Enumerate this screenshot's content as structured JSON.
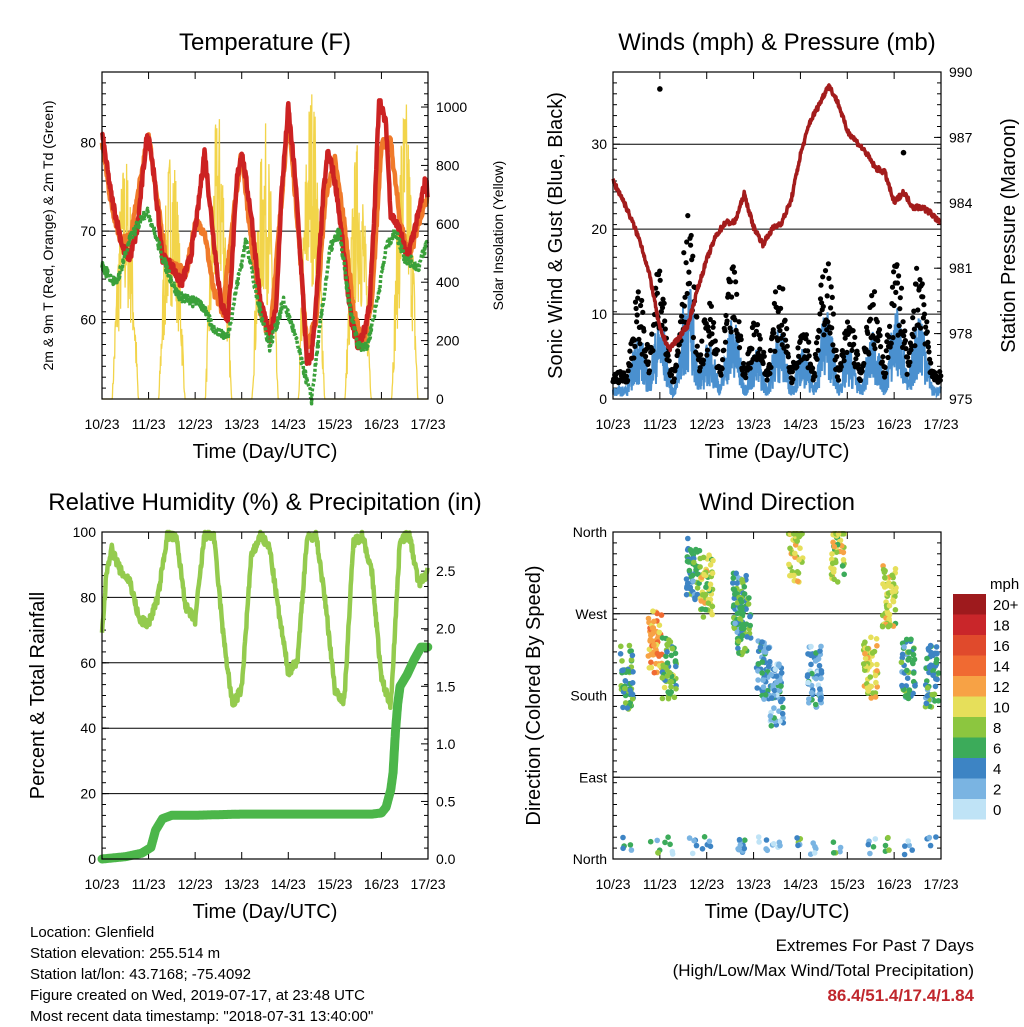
{
  "chart_data": [
    {
      "type": "line",
      "title": "Temperature (F)",
      "xlabel": "Time (Day/UTC)",
      "ylabel_left": "2m & 9m T (Red, Orange) & 2m Td (Green)",
      "ylabel_right": "Solar Insolation (Yellow)",
      "ylim_left": [
        51,
        88
      ],
      "ylim_right": [
        0,
        1120
      ],
      "yticks_left": [
        60,
        70,
        80
      ],
      "yticks_right": [
        0,
        200,
        400,
        600,
        800,
        1000
      ],
      "x_tick_labels": [
        "10/23",
        "11/23",
        "12/23",
        "13/23",
        "14/23",
        "15/23",
        "16/23",
        "17/23"
      ],
      "x_range_days": [
        10,
        17
      ],
      "grid": "horizontal",
      "series": [
        {
          "name": "2m T",
          "color": "#cc2222",
          "x": [
            10.0,
            10.2,
            10.45,
            10.6,
            10.75,
            10.95,
            11.0,
            11.1,
            11.3,
            11.5,
            11.7,
            11.9,
            12.05,
            12.2,
            12.4,
            12.55,
            12.7,
            12.8,
            12.9,
            13.0,
            13.2,
            13.4,
            13.6,
            13.75,
            13.85,
            14.0,
            14.15,
            14.3,
            14.4,
            14.5,
            14.6,
            14.75,
            14.85,
            14.95,
            15.05,
            15.2,
            15.35,
            15.5,
            15.65,
            15.75,
            15.85,
            15.95,
            16.1,
            16.2,
            16.4,
            16.55,
            16.7,
            16.8,
            16.95,
            17.0
          ],
          "y": [
            81,
            74,
            68,
            67,
            70,
            80,
            81,
            77,
            67,
            66,
            64,
            67,
            72,
            79,
            69,
            62,
            60,
            67,
            76,
            79,
            72,
            62,
            58,
            62,
            74,
            84,
            76,
            64,
            55,
            56,
            62,
            74,
            79,
            77,
            74,
            67,
            60,
            57,
            59,
            62,
            72,
            85,
            82,
            72,
            70,
            67,
            70,
            72,
            76,
            74
          ]
        },
        {
          "name": "9m T",
          "color": "#f07a2a",
          "x": [
            10.0,
            10.2,
            10.4,
            10.6,
            10.8,
            11.0,
            11.2,
            11.4,
            11.6,
            11.8,
            12.0,
            12.2,
            12.4,
            12.6,
            12.8,
            13.0,
            13.2,
            13.4,
            13.6,
            13.8,
            14.0,
            14.2,
            14.4,
            14.6,
            14.8,
            15.0,
            15.2,
            15.4,
            15.6,
            15.8,
            16.0,
            16.2,
            16.4,
            16.6,
            16.8,
            17.0
          ],
          "y": [
            80,
            73,
            69,
            69,
            75,
            81,
            73,
            66,
            66,
            65,
            71,
            70,
            63,
            61,
            71,
            79,
            69,
            61,
            58,
            70,
            83,
            71,
            57,
            60,
            74,
            78,
            71,
            61,
            57,
            62,
            80,
            80,
            71,
            67,
            71,
            74
          ]
        },
        {
          "name": "2m Td",
          "color": "#3aa03a",
          "x": [
            10.0,
            10.3,
            10.6,
            10.9,
            11.0,
            11.3,
            11.6,
            11.9,
            12.1,
            12.4,
            12.7,
            12.9,
            13.1,
            13.3,
            13.6,
            13.9,
            14.1,
            14.3,
            14.5,
            14.7,
            14.9,
            15.1,
            15.3,
            15.5,
            15.7,
            15.9,
            16.1,
            16.3,
            16.5,
            16.8,
            17.0
          ],
          "y": [
            66,
            64,
            69,
            72,
            72,
            67,
            63,
            62,
            62,
            59,
            58,
            64,
            69,
            63,
            57,
            62,
            59,
            55,
            51,
            60,
            68,
            70,
            62,
            57,
            57,
            62,
            68,
            70,
            67,
            66,
            69
          ]
        },
        {
          "name": "Solar Insolation",
          "color": "#f2d44a",
          "axis": "right",
          "days": [
            10,
            11,
            12,
            13,
            14,
            15,
            16
          ],
          "peaks": [
            850,
            900,
            1000,
            950,
            1100,
            900,
            1050
          ]
        }
      ]
    },
    {
      "type": "line",
      "title": "Winds (mph) & Pressure (mb)",
      "xlabel": "Time (Day/UTC)",
      "ylabel_left": "Sonic Wind & Gust (Blue, Black)",
      "ylabel_right": "Station Pressure (Maroon)",
      "ylim_left": [
        0,
        38.5
      ],
      "ylim_right": [
        975,
        990
      ],
      "yticks_left": [
        0,
        10,
        20,
        30
      ],
      "yticks_right": [
        975,
        978,
        981,
        984,
        987,
        990
      ],
      "x_tick_labels": [
        "10/23",
        "11/23",
        "12/23",
        "13/23",
        "14/23",
        "15/23",
        "16/23",
        "17/23"
      ],
      "x_range_days": [
        10,
        17
      ],
      "grid": "horizontal",
      "series": [
        {
          "name": "Pressure",
          "color": "#a31c1c",
          "axis": "right",
          "x": [
            10.0,
            10.2,
            10.4,
            10.6,
            10.8,
            11.0,
            11.2,
            11.4,
            11.6,
            11.8,
            12.0,
            12.2,
            12.4,
            12.6,
            12.8,
            13.0,
            13.2,
            13.4,
            13.6,
            13.8,
            14.0,
            14.2,
            14.4,
            14.6,
            14.8,
            15.0,
            15.2,
            15.4,
            15.6,
            15.8,
            16.0,
            16.2,
            16.4,
            16.6,
            16.8,
            17.0
          ],
          "y": [
            985,
            984.2,
            983.2,
            982.1,
            980.5,
            978.2,
            977.3,
            977.8,
            978.4,
            980,
            981.4,
            982.5,
            983.1,
            983.1,
            984.4,
            982.9,
            982.1,
            982.8,
            983.1,
            984.1,
            986.2,
            987.7,
            988.5,
            989.4,
            988.6,
            987.3,
            986.8,
            986.3,
            985.6,
            985.4,
            984,
            984.5,
            983.8,
            983.8,
            983.5,
            983
          ]
        },
        {
          "name": "Wind",
          "color": "#4a90cf",
          "days": [
            10.55,
            11.0,
            11.6,
            12.05,
            12.55,
            13.05,
            13.55,
            14.05,
            14.55,
            15.05,
            15.55,
            16.05,
            16.55
          ],
          "peaks": [
            8,
            10,
            14,
            7,
            10,
            6,
            9,
            6,
            11,
            6,
            8,
            11,
            11
          ]
        },
        {
          "name": "Gust",
          "color": "#000000",
          "outliers": [
            [
              11.0,
              36.5
            ],
            [
              16.2,
              29
            ]
          ]
        }
      ]
    },
    {
      "type": "line",
      "title": "Relative Humidity (%) & Precipitation (in)",
      "xlabel": "Time (Day/UTC)",
      "ylabel_left": "Percent & Total Rainfall",
      "ylim_left": [
        0,
        100
      ],
      "ylim_right": [
        0,
        2.84
      ],
      "yticks_left": [
        0,
        20,
        40,
        60,
        80,
        100
      ],
      "yticks_right": [
        "0.0",
        "0.5",
        "1.0",
        "1.5",
        "2.0",
        "2.5"
      ],
      "x_tick_labels": [
        "10/23",
        "11/23",
        "12/23",
        "13/23",
        "14/23",
        "15/23",
        "16/23",
        "17/23"
      ],
      "x_range_days": [
        10,
        17
      ],
      "grid": "horizontal",
      "series": [
        {
          "name": "RH",
          "color": "#94cb4e",
          "x": [
            10.0,
            10.1,
            10.2,
            10.4,
            10.6,
            10.8,
            11.0,
            11.2,
            11.4,
            11.6,
            11.8,
            12.0,
            12.2,
            12.4,
            12.6,
            12.8,
            13.0,
            13.2,
            13.4,
            13.6,
            13.8,
            14.0,
            14.2,
            14.4,
            14.6,
            14.8,
            15.0,
            15.2,
            15.4,
            15.6,
            15.8,
            16.0,
            16.2,
            16.4,
            16.6,
            16.8,
            17.0
          ],
          "y": [
            69,
            88,
            95,
            88,
            85,
            73,
            72,
            80,
            99,
            98,
            77,
            73,
            99,
            99,
            69,
            47,
            52,
            92,
            99,
            95,
            75,
            57,
            61,
            98,
            99,
            78,
            52,
            48,
            97,
            99,
            87,
            55,
            47,
            98,
            99,
            84,
            88
          ]
        },
        {
          "name": "Precip",
          "color": "#4cb64a",
          "axis": "right",
          "x": [
            10.0,
            10.5,
            10.85,
            11.05,
            11.15,
            11.3,
            11.5,
            12.0,
            13.0,
            14.0,
            15.0,
            15.8,
            16.0,
            16.1,
            16.2,
            16.25,
            16.3,
            16.35,
            16.4,
            16.55,
            16.7,
            16.85,
            17.0
          ],
          "y": [
            0,
            0.02,
            0.05,
            0.1,
            0.25,
            0.35,
            0.38,
            0.38,
            0.39,
            0.39,
            0.39,
            0.39,
            0.4,
            0.45,
            0.6,
            0.75,
            1.1,
            1.35,
            1.5,
            1.6,
            1.73,
            1.84,
            1.84
          ]
        }
      ]
    },
    {
      "type": "scatter",
      "title": "Wind Direction",
      "xlabel": "Time (Day/UTC)",
      "ylabel": "Direction (Colored By Speed)",
      "ytick_labels": [
        "North",
        "East",
        "South",
        "West",
        "North"
      ],
      "x_tick_labels": [
        "10/23",
        "11/23",
        "12/23",
        "13/23",
        "14/23",
        "15/23",
        "16/23",
        "17/23"
      ],
      "x_range_days": [
        10,
        17
      ],
      "grid": "horizontal",
      "legend_title": "mph",
      "legend_labels": [
        "20+",
        "18",
        "16",
        "14",
        "12",
        "10",
        "8",
        "6",
        "4",
        "2",
        "0"
      ],
      "legend_colors": [
        "#9e1a1d",
        "#c9262a",
        "#e04a2c",
        "#f06a32",
        "#f7a245",
        "#e6df5a",
        "#8cc63f",
        "#3cab5a",
        "#3d84c4",
        "#7ab4e2",
        "#bfe3f6"
      ],
      "clusters": [
        {
          "day": 10.3,
          "dir": 200,
          "speed": 6
        },
        {
          "day": 10.9,
          "dir": 240,
          "speed": 12
        },
        {
          "day": 11.2,
          "dir": 210,
          "speed": 7
        },
        {
          "day": 11.7,
          "dir": 320,
          "speed": 5
        },
        {
          "day": 12.0,
          "dir": 300,
          "speed": 9
        },
        {
          "day": 12.7,
          "dir": 280,
          "speed": 5
        },
        {
          "day": 12.8,
          "dir": 260,
          "speed": 6
        },
        {
          "day": 13.2,
          "dir": 210,
          "speed": 4
        },
        {
          "day": 13.5,
          "dir": 180,
          "speed": 3
        },
        {
          "day": 13.9,
          "dir": 340,
          "speed": 9
        },
        {
          "day": 14.3,
          "dir": 200,
          "speed": 3
        },
        {
          "day": 14.8,
          "dir": 340,
          "speed": 9
        },
        {
          "day": 15.5,
          "dir": 210,
          "speed": 10
        },
        {
          "day": 15.9,
          "dir": 290,
          "speed": 9
        },
        {
          "day": 16.3,
          "dir": 210,
          "speed": 5
        },
        {
          "day": 16.8,
          "dir": 200,
          "speed": 5
        }
      ]
    }
  ],
  "info": {
    "location": "Location: Glenfield",
    "elevation": "Station elevation: 255.514 m",
    "latlon": "Station lat/lon: 43.7168; -75.4092",
    "created": "Figure created on Wed, 2019-07-17, at 23:48 UTC",
    "recent": "Most recent data timestamp: \"2018-07-31 13:40:00\""
  },
  "extremes": {
    "title": "Extremes For Past 7 Days",
    "subtitle": "(High/Low/Max Wind/Total Precipitation)",
    "values": "86.4/51.4/17.4/1.84"
  }
}
